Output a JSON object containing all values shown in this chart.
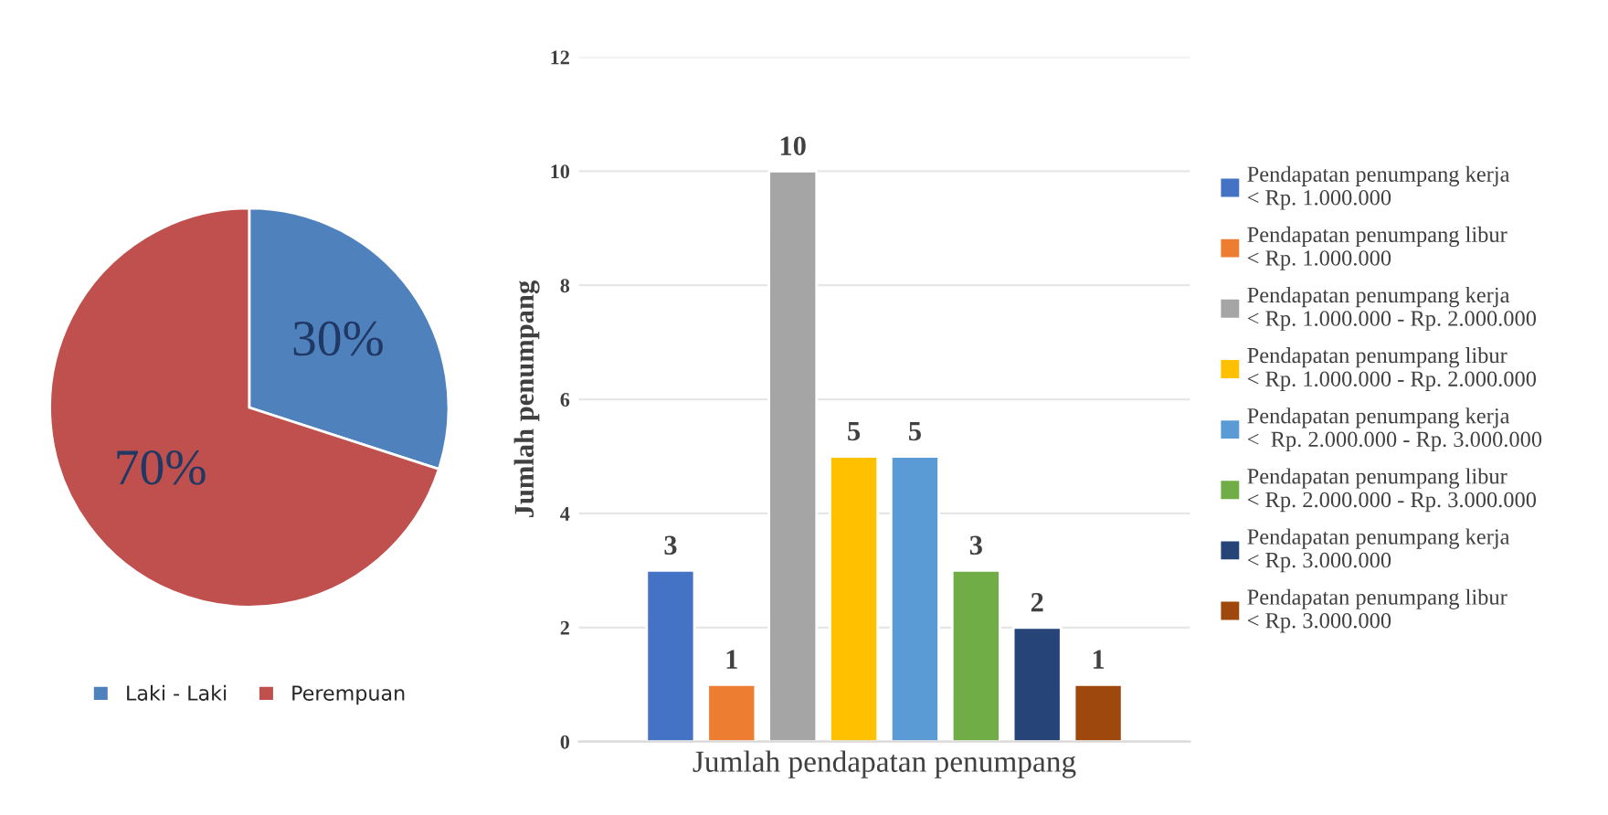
{
  "chart_data": [
    {
      "type": "pie",
      "categories": [
        "Laki - Laki",
        "Perempuan"
      ],
      "values": [
        30,
        70
      ],
      "colors": [
        "#4f81bd",
        "#c0504d"
      ],
      "value_labels": [
        "30%",
        "70%"
      ],
      "legend": "bottom"
    },
    {
      "type": "bar",
      "categories": [
        "Jumlah pendapatan penumpang"
      ],
      "ylabel": "Jumlah penumpang",
      "ylim": [
        0,
        12
      ],
      "yticks": [
        0,
        2,
        4,
        6,
        8,
        10,
        12
      ],
      "grid": "y",
      "legend": "right",
      "data_labels": true,
      "series": [
        {
          "name": "Pendapatan penumpang kerja\n< Rp. 1.000.000",
          "color": "#4472c4",
          "values": [
            3
          ]
        },
        {
          "name": "Pendapatan penumpang libur\n< Rp. 1.000.000",
          "color": "#ed7d31",
          "values": [
            1
          ]
        },
        {
          "name": "Pendapatan penumpang kerja\n< Rp. 1.000.000 - Rp. 2.000.000",
          "color": "#a5a5a5",
          "values": [
            10
          ]
        },
        {
          "name": "Pendapatan penumpang libur\n< Rp. 1.000.000 - Rp. 2.000.000",
          "color": "#ffc000",
          "values": [
            5
          ]
        },
        {
          "name": "Pendapatan penumpang kerja\n<  Rp. 2.000.000 - Rp. 3.000.000",
          "color": "#5b9bd5",
          "values": [
            5
          ]
        },
        {
          "name": "Pendapatan penumpang libur\n< Rp. 2.000.000 - Rp. 3.000.000",
          "color": "#70ad47",
          "values": [
            3
          ]
        },
        {
          "name": "Pendapatan penumpang kerja\n< Rp. 3.000.000",
          "color": "#264478",
          "values": [
            2
          ]
        },
        {
          "name": "Pendapatan penumpang libur\n< Rp. 3.000.000",
          "color": "#9e480e",
          "values": [
            1
          ]
        }
      ]
    }
  ]
}
